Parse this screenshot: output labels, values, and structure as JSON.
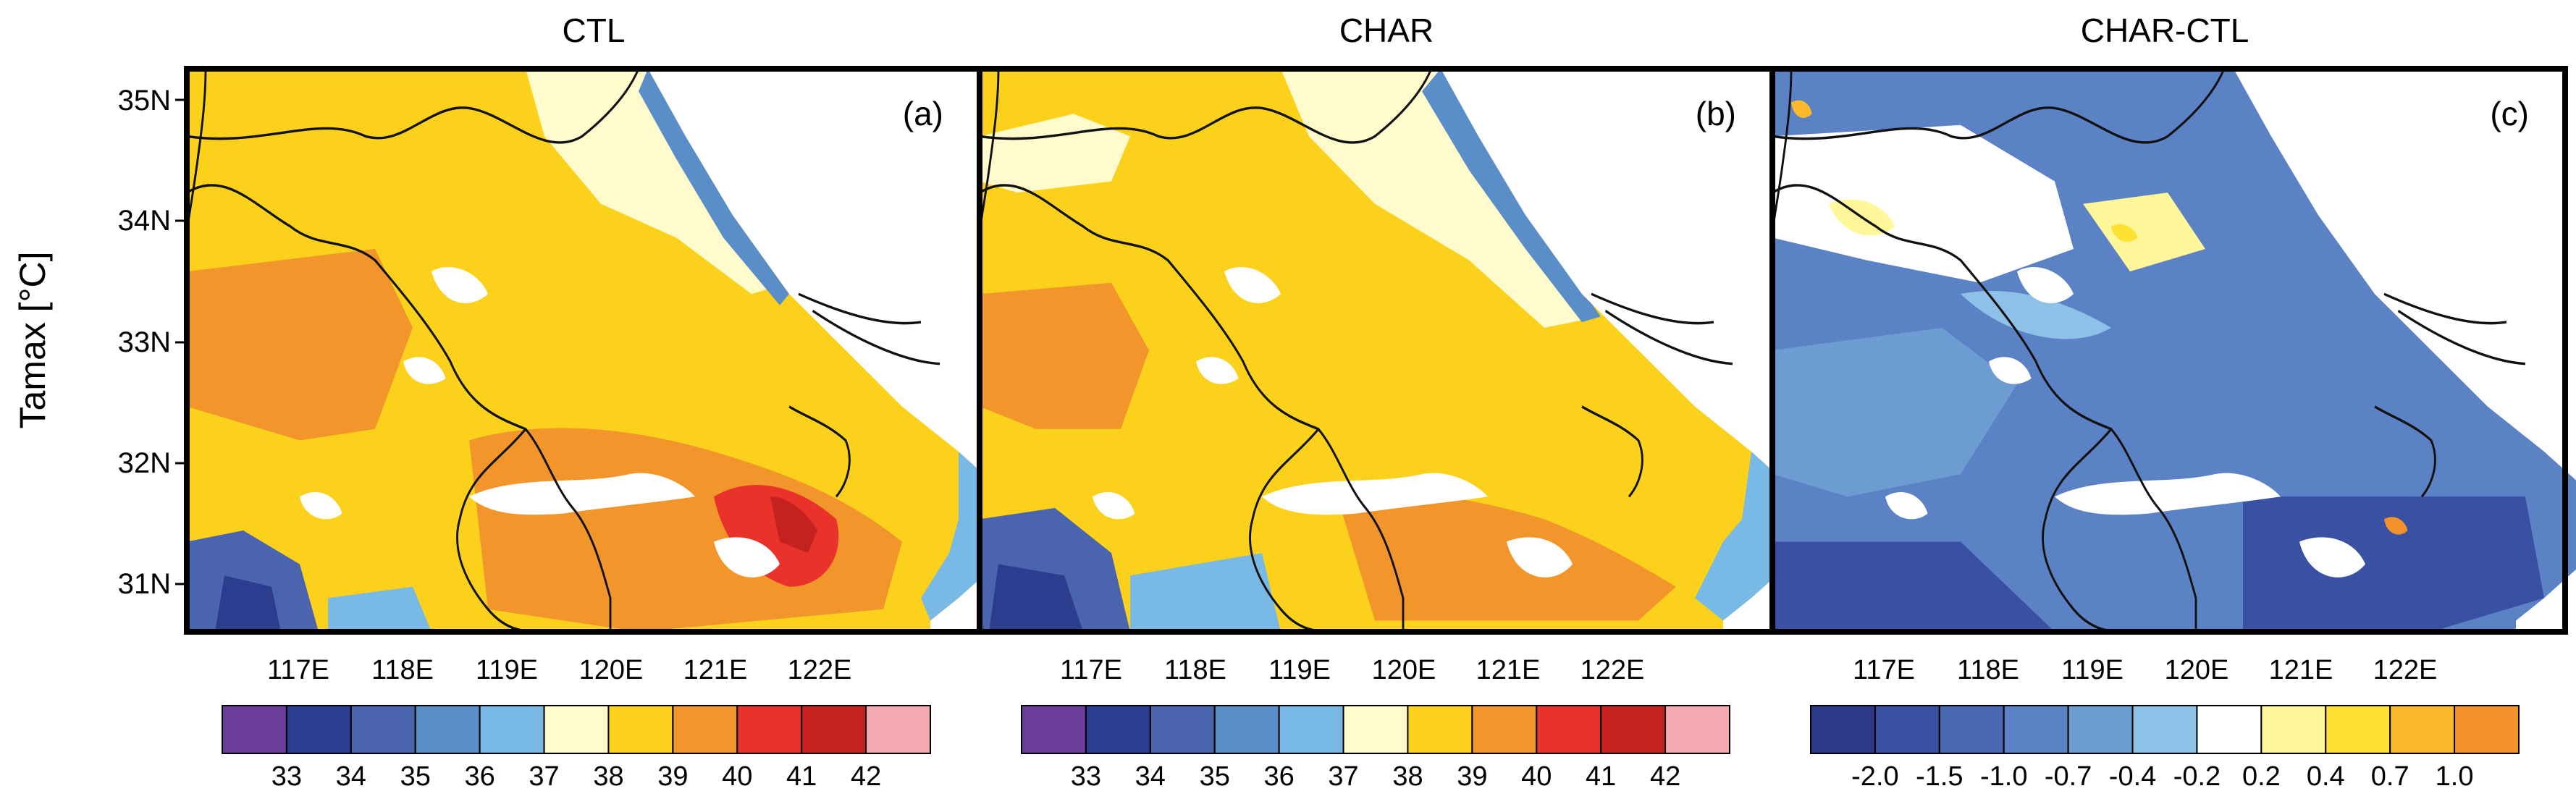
{
  "figure": {
    "ylabel": "Tamax [°C]",
    "lat_labels": [
      "35N",
      "34N",
      "33N",
      "32N",
      "31N"
    ],
    "lon_labels": [
      "117E",
      "118E",
      "119E",
      "120E",
      "121E",
      "122E"
    ]
  },
  "panels": [
    {
      "key": "ctl",
      "title": "CTL",
      "tag": "(a)",
      "colorbar": {
        "colors": [
          "#6a3d9a",
          "#2c3c8f",
          "#4a64ae",
          "#5a8ec9",
          "#79b9e6",
          "#fffbcc",
          "#fbd11c",
          "#f2962b",
          "#e8322a",
          "#c5211f",
          "#f7a9b1"
        ],
        "labels": [
          "33",
          "34",
          "35",
          "36",
          "37",
          "38",
          "39",
          "40",
          "41",
          "42"
        ]
      }
    },
    {
      "key": "char",
      "title": "CHAR",
      "tag": "(b)",
      "colorbar": {
        "colors": [
          "#6a3d9a",
          "#2c3c8f",
          "#4a64ae",
          "#5a8ec9",
          "#79b9e6",
          "#fffbcc",
          "#fbd11c",
          "#f2962b",
          "#e8322a",
          "#c5211f",
          "#f7a9b1"
        ],
        "labels": [
          "33",
          "34",
          "35",
          "36",
          "37",
          "38",
          "39",
          "40",
          "41",
          "42"
        ]
      }
    },
    {
      "key": "diff",
      "title": "CHAR-CTL",
      "tag": "(c)",
      "colorbar": {
        "colors": [
          "#2d3a8c",
          "#3a50a3",
          "#4a67b3",
          "#5b82c4",
          "#6d9cd3",
          "#8dc1e8",
          "#ffffff",
          "#fff79a",
          "#fde233",
          "#fbb92c",
          "#f3922a"
        ],
        "labels": [
          "-2.0",
          "-1.5",
          "-1.0",
          "-0.7",
          "-0.4",
          "-0.2",
          "0.2",
          "0.4",
          "0.7",
          "1.0"
        ]
      }
    }
  ],
  "colors": {
    "frame": "#000000",
    "ocean": "#ffffff",
    "boundary": "#111111"
  }
}
